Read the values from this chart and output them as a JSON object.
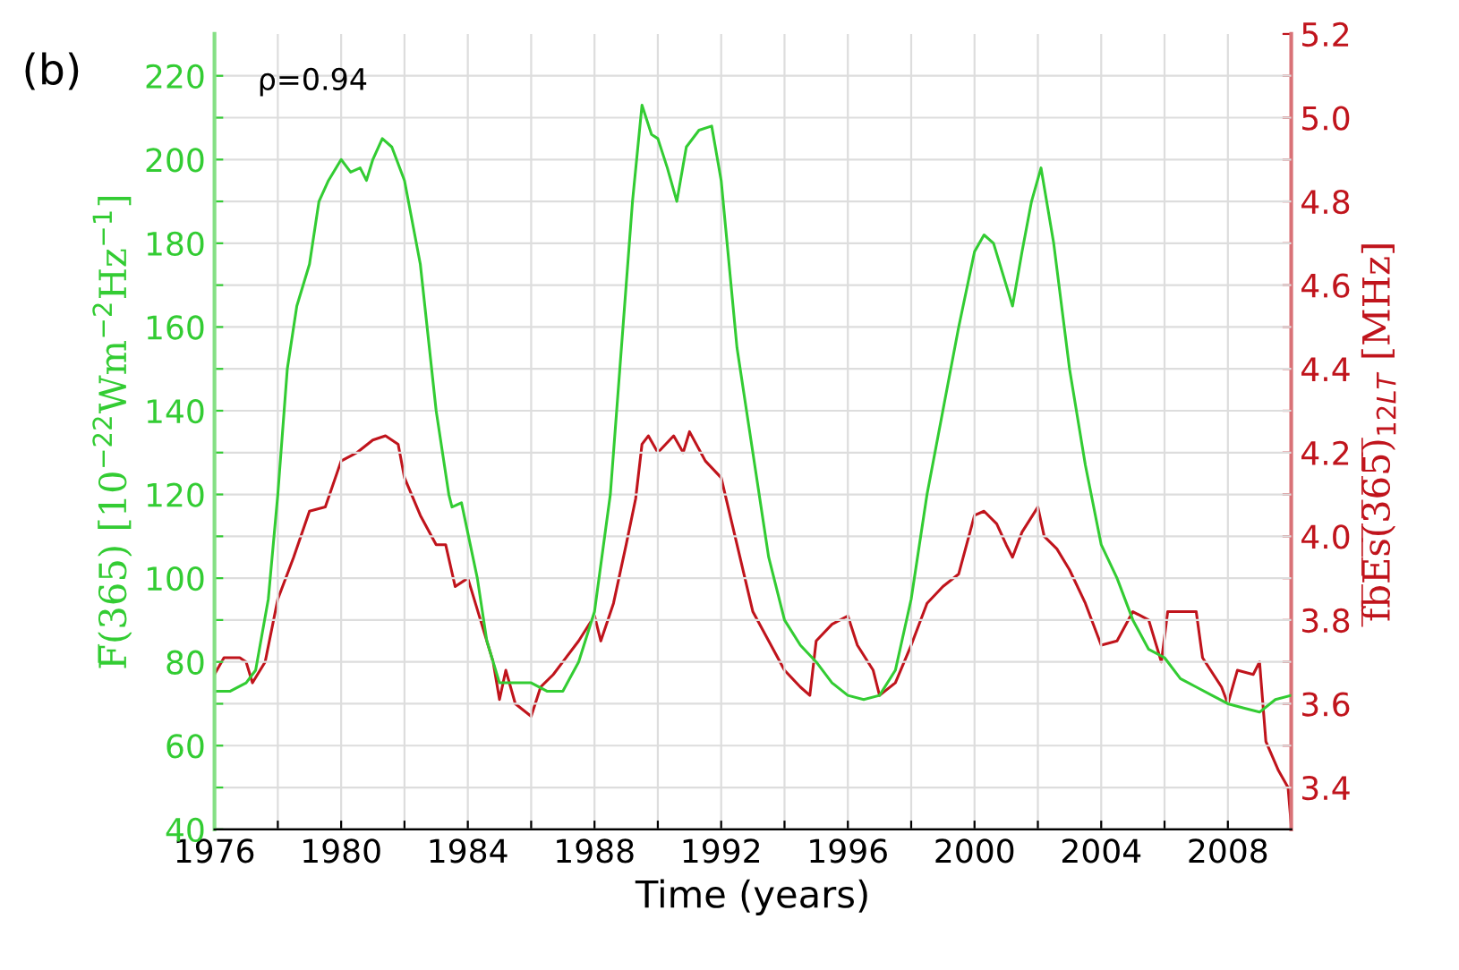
{
  "chart_data": {
    "type": "line",
    "xlabel": "Time (years)",
    "ylabel": "F̅(365) [10$^{−22}$Wm$^{−2}$Hz$^{−1}$]",
    "y2label": "f̅b̅E̅s̅(̅3̅6̅5̅)̅$_{12LT}$ [MHz]",
    "annotations": [
      "(b)",
      "ρ=0.94"
    ],
    "series": [
      {
        "color": "#33cc33",
        "x": [
          1976.0,
          1976.5,
          1977.0,
          1977.3,
          1977.7,
          1978.0,
          1978.3,
          1978.6,
          1979.0,
          1979.3,
          1979.6,
          1980.0,
          1980.3,
          1980.6,
          1980.8,
          1981.0,
          1981.3,
          1981.6,
          1982.0,
          1982.5,
          1983.0,
          1983.4,
          1983.5,
          1983.8,
          1984.3,
          1984.6,
          1985.0,
          1985.5,
          1986.0,
          1986.5,
          1987.0,
          1987.5,
          1988.0,
          1988.5,
          1988.8,
          1989.0,
          1989.2,
          1989.5,
          1989.8,
          1990.0,
          1990.3,
          1990.6,
          1990.9,
          1991.3,
          1991.7,
          1992.0,
          1992.5,
          1993.0,
          1993.5,
          1994.0,
          1994.5,
          1995.0,
          1995.5,
          1996.0,
          1996.5,
          1997.0,
          1997.5,
          1998.0,
          1998.5,
          1999.0,
          1999.5,
          2000.0,
          2000.3,
          2000.6,
          2001.0,
          2001.2,
          2001.5,
          2001.8,
          2002.1,
          2002.5,
          2003.0,
          2003.5,
          2004.0,
          2004.5,
          2005.0,
          2005.5,
          2006.0,
          2006.5,
          2007.0,
          2007.5,
          2008.0,
          2008.5,
          2009.0,
          2009.5,
          2010.0
        ],
        "values": [
          73,
          73,
          75,
          78,
          95,
          120,
          150,
          165,
          175,
          190,
          195,
          200,
          197,
          198,
          195,
          200,
          205,
          203,
          195,
          175,
          140,
          120,
          117,
          118,
          100,
          85,
          75,
          75,
          75,
          73,
          73,
          80,
          92,
          120,
          150,
          170,
          190,
          213,
          206,
          205,
          198,
          190,
          203,
          207,
          208,
          195,
          155,
          130,
          105,
          90,
          84,
          80,
          75,
          72,
          71,
          72,
          78,
          95,
          120,
          140,
          160,
          178,
          182,
          180,
          170,
          165,
          178,
          190,
          198,
          180,
          150,
          127,
          108,
          100,
          90,
          83,
          81,
          76,
          74,
          72,
          70,
          69,
          68,
          71,
          72
        ]
      },
      {
        "color": "#c0141c",
        "axis": "y2",
        "x": [
          1976.0,
          1976.3,
          1976.8,
          1977.0,
          1977.2,
          1977.6,
          1978.0,
          1978.5,
          1979.0,
          1979.5,
          1980.0,
          1980.5,
          1981.0,
          1981.4,
          1981.8,
          1982.0,
          1982.5,
          1983.0,
          1983.3,
          1983.6,
          1984.0,
          1984.4,
          1984.8,
          1985.0,
          1985.2,
          1985.5,
          1986.0,
          1986.3,
          1986.7,
          1987.0,
          1987.5,
          1988.0,
          1988.2,
          1988.6,
          1989.0,
          1989.3,
          1989.5,
          1989.7,
          1990.0,
          1990.5,
          1990.8,
          1991.0,
          1991.5,
          1992.0,
          1992.5,
          1993.0,
          1993.5,
          1994.0,
          1994.5,
          1994.8,
          1995.0,
          1995.5,
          1996.0,
          1996.3,
          1996.8,
          1997.0,
          1997.5,
          1998.0,
          1998.5,
          1999.0,
          1999.5,
          2000.0,
          2000.3,
          2000.7,
          2001.0,
          2001.2,
          2001.5,
          2002.0,
          2002.2,
          2002.6,
          2003.0,
          2003.5,
          2004.0,
          2004.5,
          2005.0,
          2005.5,
          2005.9,
          2006.1,
          2006.5,
          2007.0,
          2007.2,
          2007.8,
          2008.0,
          2008.3,
          2008.8,
          2009.0,
          2009.2,
          2009.6,
          2009.9,
          2010.0
        ],
        "values": [
          3.67,
          3.71,
          3.71,
          3.7,
          3.65,
          3.7,
          3.85,
          3.95,
          4.06,
          4.07,
          4.18,
          4.2,
          4.23,
          4.24,
          4.22,
          4.14,
          4.05,
          3.98,
          3.98,
          3.88,
          3.9,
          3.8,
          3.7,
          3.61,
          3.68,
          3.6,
          3.57,
          3.64,
          3.67,
          3.7,
          3.75,
          3.81,
          3.75,
          3.84,
          3.98,
          4.09,
          4.22,
          4.24,
          4.2,
          4.24,
          4.2,
          4.25,
          4.18,
          4.14,
          3.98,
          3.82,
          3.75,
          3.68,
          3.64,
          3.62,
          3.75,
          3.79,
          3.81,
          3.74,
          3.68,
          3.62,
          3.65,
          3.74,
          3.84,
          3.88,
          3.91,
          4.05,
          4.06,
          4.03,
          3.98,
          3.95,
          4.01,
          4.07,
          4.0,
          3.97,
          3.92,
          3.84,
          3.74,
          3.75,
          3.82,
          3.8,
          3.7,
          3.82,
          3.82,
          3.82,
          3.71,
          3.64,
          3.6,
          3.68,
          3.67,
          3.7,
          3.51,
          3.44,
          3.4,
          3.31
        ]
      }
    ],
    "xlim": [
      1976,
      2010
    ],
    "xticks": [
      1976,
      {
        "value": 1978,
        "label": null
      },
      1980,
      {
        "value": 1982,
        "label": null
      },
      1984,
      {
        "value": 1986,
        "label": null
      },
      1988,
      {
        "value": 1990,
        "label": null
      },
      1992,
      {
        "value": 1994,
        "label": null
      },
      1996,
      {
        "value": 1998,
        "label": null
      },
      2000,
      {
        "value": 2002,
        "label": null
      },
      2004,
      {
        "value": 2006,
        "label": null
      },
      2008
    ],
    "ylim": [
      40,
      230
    ],
    "yticks": [
      40,
      {
        "value": 50,
        "label": null
      },
      60,
      {
        "value": 70,
        "label": null
      },
      80,
      {
        "value": 90,
        "label": null
      },
      100,
      {
        "value": 110,
        "label": null
      },
      120,
      {
        "value": 130,
        "label": null
      },
      140,
      {
        "value": 150,
        "label": null
      },
      160,
      {
        "value": 170,
        "label": null
      },
      180,
      {
        "value": 190,
        "label": null
      },
      200,
      {
        "value": 210,
        "label": null
      },
      220
    ],
    "y2lim": [
      3.3,
      5.2
    ],
    "y2ticks": [
      {
        "value": 3.4,
        "label": "3.4"
      },
      {
        "value": 3.5,
        "label": null
      },
      {
        "value": 3.6,
        "label": "3.6"
      },
      {
        "value": 3.7,
        "label": null
      },
      {
        "value": 3.8,
        "label": "3.8"
      },
      {
        "value": 3.9,
        "label": null
      },
      {
        "value": 4.0,
        "label": "4.0"
      },
      {
        "value": 4.1,
        "label": null
      },
      {
        "value": 4.2,
        "label": "4.2"
      },
      {
        "value": 4.3,
        "label": null
      },
      {
        "value": 4.4,
        "label": "4.4"
      },
      {
        "value": 4.5,
        "label": null
      },
      {
        "value": 4.6,
        "label": "4.6"
      },
      {
        "value": 4.7,
        "label": null
      },
      {
        "value": 4.8,
        "label": "4.8"
      },
      {
        "value": 4.9,
        "label": null
      },
      {
        "value": 5.0,
        "label": "5.0"
      },
      {
        "value": 5.1,
        "label": null
      },
      {
        "value": 5.2,
        "label": "5.2"
      }
    ],
    "grid": true,
    "line_style": "solid"
  }
}
